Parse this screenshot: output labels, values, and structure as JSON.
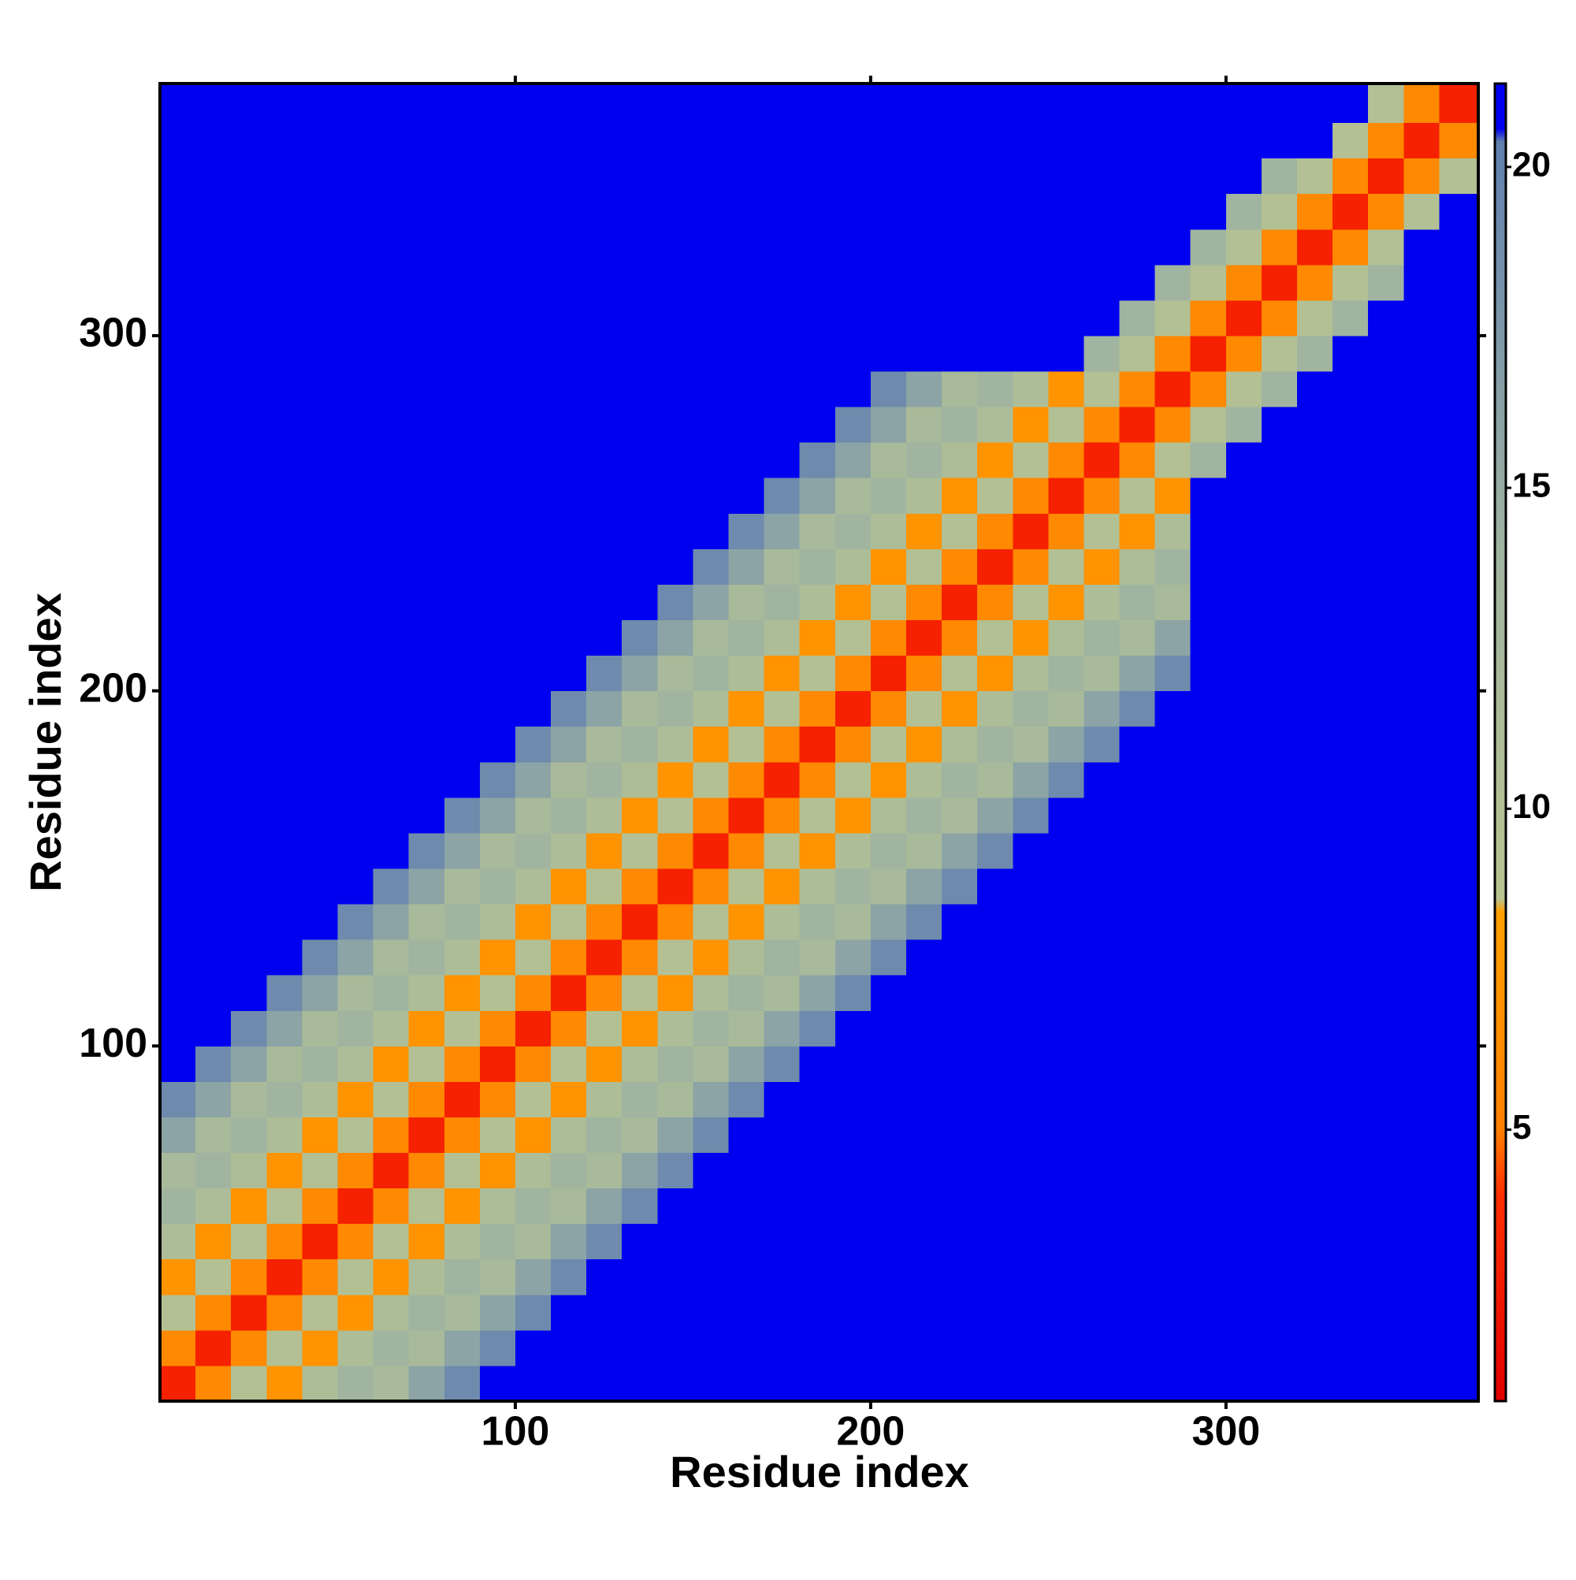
{
  "chart_data": {
    "type": "heatmap",
    "x_label": "Residue index",
    "y_label": "Residue index",
    "xlim": [
      0,
      371
    ],
    "ylim": [
      0,
      371
    ],
    "xticks": [
      100,
      200,
      300
    ],
    "yticks": [
      100,
      200,
      300
    ],
    "bin_edges": [
      0,
      10,
      20,
      30,
      40,
      50,
      60,
      70,
      80,
      90,
      100,
      110,
      120,
      130,
      140,
      150,
      160,
      170,
      180,
      190,
      200,
      210,
      220,
      230,
      240,
      250,
      260,
      270,
      280,
      290,
      300,
      310,
      320,
      330,
      340,
      350,
      360,
      371
    ],
    "clim": [
      0.77,
      21.3
    ],
    "cticks": [
      5,
      10,
      15,
      20
    ],
    "colorscale": [
      {
        "value": 0.77,
        "color": "#e00000"
      },
      {
        "value": 4,
        "color": "#ff3000"
      },
      {
        "value": 5,
        "color": "#ff8000"
      },
      {
        "value": 8.4,
        "color": "#ffa000"
      },
      {
        "value": 8.6,
        "color": "#b8c490"
      },
      {
        "value": 14,
        "color": "#a0b4a0"
      },
      {
        "value": 20.4,
        "color": "#6080b0"
      },
      {
        "value": 20.6,
        "color": "#0000f0"
      },
      {
        "value": 21.3,
        "color": "#0000f0"
      }
    ],
    "z": [
      [
        3,
        6,
        10,
        7,
        11,
        14,
        12,
        16,
        19,
        21,
        21,
        21,
        21,
        21,
        21,
        21,
        21,
        21,
        21,
        21,
        21,
        21,
        21,
        21,
        21,
        21,
        21,
        21,
        21,
        21,
        21,
        21,
        21,
        21,
        21,
        21,
        21
      ],
      [
        6,
        3,
        6,
        10,
        7,
        11,
        14,
        12,
        16,
        19,
        21,
        21,
        21,
        21,
        21,
        21,
        21,
        21,
        21,
        21,
        21,
        21,
        21,
        21,
        21,
        21,
        21,
        21,
        21,
        21,
        21,
        21,
        21,
        21,
        21,
        21,
        21
      ],
      [
        10,
        6,
        3,
        6,
        10,
        7,
        11,
        14,
        12,
        16,
        19,
        21,
        21,
        21,
        21,
        21,
        21,
        21,
        21,
        21,
        21,
        21,
        21,
        21,
        21,
        21,
        21,
        21,
        21,
        21,
        21,
        21,
        21,
        21,
        21,
        21,
        21
      ],
      [
        7,
        10,
        6,
        3,
        6,
        10,
        7,
        11,
        14,
        12,
        16,
        19,
        21,
        21,
        21,
        21,
        21,
        21,
        21,
        21,
        21,
        21,
        21,
        21,
        21,
        21,
        21,
        21,
        21,
        21,
        21,
        21,
        21,
        21,
        21,
        21,
        21
      ],
      [
        11,
        7,
        10,
        6,
        3,
        6,
        10,
        7,
        11,
        14,
        12,
        16,
        19,
        21,
        21,
        21,
        21,
        21,
        21,
        21,
        21,
        21,
        21,
        21,
        21,
        21,
        21,
        21,
        21,
        21,
        21,
        21,
        21,
        21,
        21,
        21,
        21
      ],
      [
        14,
        11,
        7,
        10,
        6,
        3,
        6,
        10,
        7,
        11,
        14,
        12,
        16,
        19,
        21,
        21,
        21,
        21,
        21,
        21,
        21,
        21,
        21,
        21,
        21,
        21,
        21,
        21,
        21,
        21,
        21,
        21,
        21,
        21,
        21,
        21,
        21
      ],
      [
        12,
        14,
        11,
        7,
        10,
        6,
        3,
        6,
        10,
        7,
        11,
        14,
        12,
        16,
        19,
        21,
        21,
        21,
        21,
        21,
        21,
        21,
        21,
        21,
        21,
        21,
        21,
        21,
        21,
        21,
        21,
        21,
        21,
        21,
        21,
        21,
        21
      ],
      [
        16,
        12,
        14,
        11,
        7,
        10,
        6,
        3,
        6,
        10,
        7,
        11,
        14,
        12,
        16,
        19,
        21,
        21,
        21,
        21,
        21,
        21,
        21,
        21,
        21,
        21,
        21,
        21,
        21,
        21,
        21,
        21,
        21,
        21,
        21,
        21,
        21
      ],
      [
        19,
        16,
        12,
        14,
        11,
        7,
        10,
        6,
        3,
        6,
        10,
        7,
        11,
        14,
        12,
        16,
        19,
        21,
        21,
        21,
        21,
        21,
        21,
        21,
        21,
        21,
        21,
        21,
        21,
        21,
        21,
        21,
        21,
        21,
        21,
        21,
        21
      ],
      [
        21,
        19,
        16,
        12,
        14,
        11,
        7,
        10,
        6,
        3,
        6,
        10,
        7,
        11,
        14,
        12,
        16,
        19,
        21,
        21,
        21,
        21,
        21,
        21,
        21,
        21,
        21,
        21,
        21,
        21,
        21,
        21,
        21,
        21,
        21,
        21,
        21
      ],
      [
        21,
        21,
        19,
        16,
        12,
        14,
        11,
        7,
        10,
        6,
        3,
        6,
        10,
        7,
        11,
        14,
        12,
        16,
        19,
        21,
        21,
        21,
        21,
        21,
        21,
        21,
        21,
        21,
        21,
        21,
        21,
        21,
        21,
        21,
        21,
        21,
        21
      ],
      [
        21,
        21,
        21,
        19,
        16,
        12,
        14,
        11,
        7,
        10,
        6,
        3,
        6,
        10,
        7,
        11,
        14,
        12,
        16,
        19,
        21,
        21,
        21,
        21,
        21,
        21,
        21,
        21,
        21,
        21,
        21,
        21,
        21,
        21,
        21,
        21,
        21
      ],
      [
        21,
        21,
        21,
        21,
        19,
        16,
        12,
        14,
        11,
        7,
        10,
        6,
        3,
        6,
        10,
        7,
        11,
        14,
        12,
        16,
        19,
        21,
        21,
        21,
        21,
        21,
        21,
        21,
        21,
        21,
        21,
        21,
        21,
        21,
        21,
        21,
        21
      ],
      [
        21,
        21,
        21,
        21,
        21,
        19,
        16,
        12,
        14,
        11,
        7,
        10,
        6,
        3,
        6,
        10,
        7,
        11,
        14,
        12,
        16,
        19,
        21,
        21,
        21,
        21,
        21,
        21,
        21,
        21,
        21,
        21,
        21,
        21,
        21,
        21,
        21
      ],
      [
        21,
        21,
        21,
        21,
        21,
        21,
        19,
        16,
        12,
        14,
        11,
        7,
        10,
        6,
        3,
        6,
        10,
        7,
        11,
        14,
        12,
        16,
        19,
        21,
        21,
        21,
        21,
        21,
        21,
        21,
        21,
        21,
        21,
        21,
        21,
        21,
        21
      ],
      [
        21,
        21,
        21,
        21,
        21,
        21,
        21,
        19,
        16,
        12,
        14,
        11,
        7,
        10,
        6,
        3,
        6,
        10,
        7,
        11,
        14,
        12,
        16,
        19,
        21,
        21,
        21,
        21,
        21,
        21,
        21,
        21,
        21,
        21,
        21,
        21,
        21
      ],
      [
        21,
        21,
        21,
        21,
        21,
        21,
        21,
        21,
        19,
        16,
        12,
        14,
        11,
        7,
        10,
        6,
        3,
        6,
        10,
        7,
        11,
        14,
        12,
        16,
        19,
        21,
        21,
        21,
        21,
        21,
        21,
        21,
        21,
        21,
        21,
        21,
        21
      ],
      [
        21,
        21,
        21,
        21,
        21,
        21,
        21,
        21,
        21,
        19,
        16,
        12,
        14,
        11,
        7,
        10,
        6,
        3,
        6,
        10,
        7,
        11,
        14,
        12,
        16,
        19,
        21,
        21,
        21,
        21,
        21,
        21,
        21,
        21,
        21,
        21,
        21
      ],
      [
        21,
        21,
        21,
        21,
        21,
        21,
        21,
        21,
        21,
        21,
        19,
        16,
        12,
        14,
        11,
        7,
        10,
        6,
        3,
        6,
        10,
        7,
        11,
        14,
        12,
        16,
        19,
        21,
        21,
        21,
        21,
        21,
        21,
        21,
        21,
        21,
        21
      ],
      [
        21,
        21,
        21,
        21,
        21,
        21,
        21,
        21,
        21,
        21,
        21,
        19,
        16,
        12,
        14,
        11,
        7,
        10,
        6,
        3,
        6,
        10,
        7,
        11,
        14,
        12,
        16,
        19,
        21,
        21,
        21,
        21,
        21,
        21,
        21,
        21,
        21
      ],
      [
        21,
        21,
        21,
        21,
        21,
        21,
        21,
        21,
        21,
        21,
        21,
        21,
        19,
        16,
        12,
        14,
        11,
        7,
        10,
        6,
        3,
        6,
        10,
        7,
        11,
        14,
        12,
        16,
        19,
        21,
        21,
        21,
        21,
        21,
        21,
        21,
        21
      ],
      [
        21,
        21,
        21,
        21,
        21,
        21,
        21,
        21,
        21,
        21,
        21,
        21,
        21,
        19,
        16,
        12,
        14,
        11,
        7,
        10,
        6,
        3,
        6,
        10,
        7,
        11,
        14,
        12,
        16,
        21,
        21,
        21,
        21,
        21,
        21,
        21,
        21
      ],
      [
        21,
        21,
        21,
        21,
        21,
        21,
        21,
        21,
        21,
        21,
        21,
        21,
        21,
        21,
        19,
        16,
        12,
        14,
        11,
        7,
        10,
        6,
        3,
        6,
        10,
        7,
        11,
        14,
        12,
        21,
        21,
        21,
        21,
        21,
        21,
        21,
        21
      ],
      [
        21,
        21,
        21,
        21,
        21,
        21,
        21,
        21,
        21,
        21,
        21,
        21,
        21,
        21,
        21,
        19,
        16,
        12,
        14,
        11,
        7,
        10,
        6,
        3,
        6,
        10,
        7,
        11,
        14,
        21,
        21,
        21,
        21,
        21,
        21,
        21,
        21
      ],
      [
        21,
        21,
        21,
        21,
        21,
        21,
        21,
        21,
        21,
        21,
        21,
        21,
        21,
        21,
        21,
        21,
        19,
        16,
        12,
        14,
        11,
        7,
        10,
        6,
        3,
        6,
        10,
        7,
        11,
        21,
        21,
        21,
        21,
        21,
        21,
        21,
        21
      ],
      [
        21,
        21,
        21,
        21,
        21,
        21,
        21,
        21,
        21,
        21,
        21,
        21,
        21,
        21,
        21,
        21,
        21,
        19,
        16,
        12,
        14,
        11,
        7,
        10,
        6,
        3,
        6,
        10,
        7,
        21,
        21,
        21,
        21,
        21,
        21,
        21,
        21
      ],
      [
        21,
        21,
        21,
        21,
        21,
        21,
        21,
        21,
        21,
        21,
        21,
        21,
        21,
        21,
        21,
        21,
        21,
        21,
        19,
        16,
        12,
        14,
        11,
        7,
        10,
        6,
        3,
        6,
        10,
        14,
        21,
        21,
        21,
        21,
        21,
        21,
        21
      ],
      [
        21,
        21,
        21,
        21,
        21,
        21,
        21,
        21,
        21,
        21,
        21,
        21,
        21,
        21,
        21,
        21,
        21,
        21,
        21,
        19,
        16,
        12,
        14,
        11,
        7,
        10,
        6,
        3,
        6,
        10,
        14,
        21,
        21,
        21,
        21,
        21,
        21
      ],
      [
        21,
        21,
        21,
        21,
        21,
        21,
        21,
        21,
        21,
        21,
        21,
        21,
        21,
        21,
        21,
        21,
        21,
        21,
        21,
        21,
        19,
        16,
        12,
        14,
        11,
        7,
        10,
        6,
        3,
        6,
        10,
        14,
        21,
        21,
        21,
        21,
        21
      ],
      [
        21,
        21,
        21,
        21,
        21,
        21,
        21,
        21,
        21,
        21,
        21,
        21,
        21,
        21,
        21,
        21,
        21,
        21,
        21,
        21,
        21,
        21,
        21,
        21,
        21,
        21,
        14,
        10,
        6,
        3,
        6,
        10,
        14,
        21,
        21,
        21,
        21
      ],
      [
        21,
        21,
        21,
        21,
        21,
        21,
        21,
        21,
        21,
        21,
        21,
        21,
        21,
        21,
        21,
        21,
        21,
        21,
        21,
        21,
        21,
        21,
        21,
        21,
        21,
        21,
        21,
        14,
        10,
        6,
        3,
        6,
        10,
        14,
        21,
        21,
        21
      ],
      [
        21,
        21,
        21,
        21,
        21,
        21,
        21,
        21,
        21,
        21,
        21,
        21,
        21,
        21,
        21,
        21,
        21,
        21,
        21,
        21,
        21,
        21,
        21,
        21,
        21,
        21,
        21,
        21,
        14,
        10,
        6,
        3,
        6,
        10,
        14,
        21,
        21
      ],
      [
        21,
        21,
        21,
        21,
        21,
        21,
        21,
        21,
        21,
        21,
        21,
        21,
        21,
        21,
        21,
        21,
        21,
        21,
        21,
        21,
        21,
        21,
        21,
        21,
        21,
        21,
        21,
        21,
        21,
        14,
        10,
        6,
        3,
        6,
        10,
        21,
        21
      ],
      [
        21,
        21,
        21,
        21,
        21,
        21,
        21,
        21,
        21,
        21,
        21,
        21,
        21,
        21,
        21,
        21,
        21,
        21,
        21,
        21,
        21,
        21,
        21,
        21,
        21,
        21,
        21,
        21,
        21,
        21,
        14,
        10,
        6,
        3,
        6,
        10,
        21
      ],
      [
        21,
        21,
        21,
        21,
        21,
        21,
        21,
        21,
        21,
        21,
        21,
        21,
        21,
        21,
        21,
        21,
        21,
        21,
        21,
        21,
        21,
        21,
        21,
        21,
        21,
        21,
        21,
        21,
        21,
        21,
        21,
        14,
        10,
        6,
        3,
        6,
        10
      ],
      [
        21,
        21,
        21,
        21,
        21,
        21,
        21,
        21,
        21,
        21,
        21,
        21,
        21,
        21,
        21,
        21,
        21,
        21,
        21,
        21,
        21,
        21,
        21,
        21,
        21,
        21,
        21,
        21,
        21,
        21,
        21,
        21,
        21,
        10,
        6,
        3,
        6
      ],
      [
        21,
        21,
        21,
        21,
        21,
        21,
        21,
        21,
        21,
        21,
        21,
        21,
        21,
        21,
        21,
        21,
        21,
        21,
        21,
        21,
        21,
        21,
        21,
        21,
        21,
        21,
        21,
        21,
        21,
        21,
        21,
        21,
        21,
        21,
        10,
        6,
        3
      ]
    ]
  }
}
